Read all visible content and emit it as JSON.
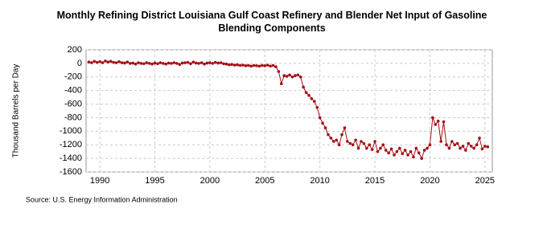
{
  "chart_data": {
    "type": "line",
    "title": "Monthly Refining District Louisiana Gulf Coast Refinery and Blender Net Input of Gasoline Blending Components",
    "y_label": "Thousand Barrels per Day",
    "source": "Source: U.S. Energy Information Administration",
    "xlim": [
      1988.75,
      2025.67
    ],
    "xticks": [
      1990,
      1995,
      2000,
      2005,
      2010,
      2015,
      2020,
      2025
    ],
    "ylim": [
      -1600,
      200
    ],
    "yticks": [
      200,
      0,
      -200,
      -400,
      -600,
      -800,
      -1000,
      -1200,
      -1400,
      -1600
    ],
    "grid": true,
    "x": [
      1989,
      1989.25,
      1989.5,
      1989.75,
      1990,
      1990.25,
      1990.5,
      1990.75,
      1991,
      1991.25,
      1991.5,
      1991.75,
      1992,
      1992.25,
      1992.5,
      1992.75,
      1993,
      1993.25,
      1993.5,
      1993.75,
      1994,
      1994.25,
      1994.5,
      1994.75,
      1995,
      1995.25,
      1995.5,
      1995.75,
      1996,
      1996.25,
      1996.5,
      1996.75,
      1997,
      1997.25,
      1997.5,
      1997.75,
      1998,
      1998.25,
      1998.5,
      1998.75,
      1999,
      1999.25,
      1999.5,
      1999.75,
      2000,
      2000.25,
      2000.5,
      2000.75,
      2001,
      2001.25,
      2001.5,
      2001.75,
      2002,
      2002.25,
      2002.5,
      2002.75,
      2003,
      2003.25,
      2003.5,
      2003.75,
      2004,
      2004.25,
      2004.5,
      2004.75,
      2005,
      2005.25,
      2005.5,
      2005.75,
      2006,
      2006.25,
      2006.5,
      2006.75,
      2007,
      2007.25,
      2007.5,
      2007.75,
      2008,
      2008.25,
      2008.5,
      2008.75,
      2009,
      2009.25,
      2009.5,
      2009.75,
      2010,
      2010.25,
      2010.5,
      2010.75,
      2011,
      2011.25,
      2011.5,
      2011.75,
      2012,
      2012.25,
      2012.5,
      2012.75,
      2013,
      2013.25,
      2013.5,
      2013.75,
      2014,
      2014.25,
      2014.5,
      2014.75,
      2015,
      2015.25,
      2015.5,
      2015.75,
      2016,
      2016.25,
      2016.5,
      2016.75,
      2017,
      2017.25,
      2017.5,
      2017.75,
      2018,
      2018.25,
      2018.5,
      2018.75,
      2019,
      2019.25,
      2019.5,
      2019.75,
      2020,
      2020.25,
      2020.5,
      2020.75,
      2021,
      2021.25,
      2021.5,
      2021.75,
      2022,
      2022.25,
      2022.5,
      2022.75,
      2023,
      2023.25,
      2023.5,
      2023.75,
      2024,
      2024.25,
      2024.5,
      2024.75,
      2025,
      2025.25
    ],
    "series": [
      {
        "color": "#a50f15",
        "values": [
          20,
          10,
          30,
          15,
          25,
          10,
          35,
          20,
          30,
          15,
          10,
          25,
          10,
          5,
          20,
          0,
          5,
          -10,
          10,
          0,
          -5,
          10,
          0,
          -10,
          5,
          -5,
          10,
          0,
          -10,
          5,
          0,
          10,
          0,
          -15,
          5,
          10,
          15,
          -5,
          20,
          5,
          0,
          10,
          -10,
          5,
          10,
          0,
          15,
          5,
          10,
          -5,
          -10,
          -20,
          -15,
          -25,
          -20,
          -30,
          -25,
          -35,
          -30,
          -40,
          -30,
          -35,
          -40,
          -30,
          -35,
          -25,
          -40,
          -30,
          -50,
          -120,
          -300,
          -180,
          -190,
          -170,
          -200,
          -180,
          -170,
          -200,
          -350,
          -430,
          -470,
          -520,
          -560,
          -650,
          -800,
          -880,
          -950,
          -1050,
          -1100,
          -1150,
          -1130,
          -1200,
          -1050,
          -950,
          -1150,
          -1180,
          -1200,
          -1130,
          -1250,
          -1150,
          -1180,
          -1250,
          -1200,
          -1270,
          -1150,
          -1300,
          -1250,
          -1200,
          -1280,
          -1320,
          -1260,
          -1350,
          -1300,
          -1250,
          -1330,
          -1280,
          -1350,
          -1300,
          -1380,
          -1250,
          -1320,
          -1400,
          -1280,
          -1250,
          -1200,
          -800,
          -900,
          -850,
          -1150,
          -860,
          -1200,
          -1250,
          -1150,
          -1200,
          -1180,
          -1250,
          -1220,
          -1280,
          -1180,
          -1220,
          -1250,
          -1200,
          -1100,
          -1260,
          -1220,
          -1230
        ]
      }
    ]
  }
}
